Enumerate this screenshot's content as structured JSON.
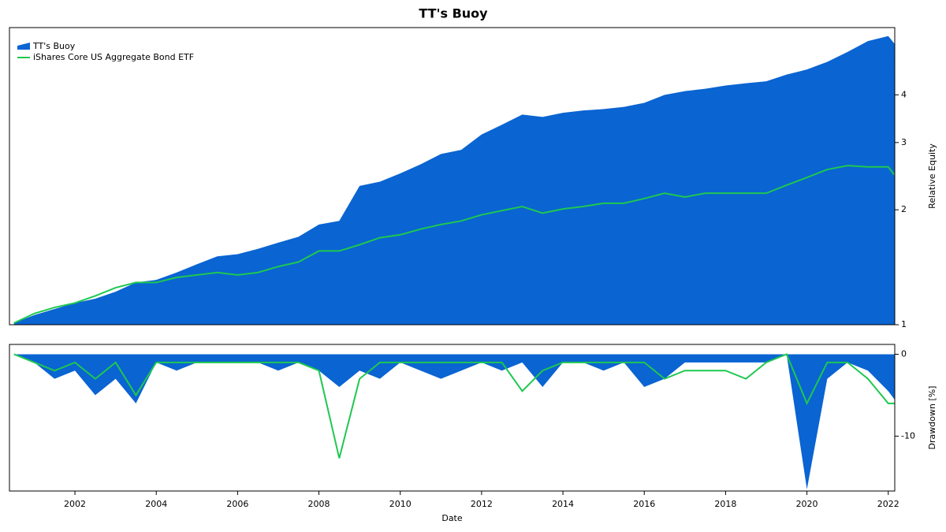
{
  "chart_data": [
    {
      "type": "area",
      "title": "TT's Buoy",
      "ylabel": "Relative Equity",
      "log": true,
      "legend": "upper left",
      "x": [
        2000.5,
        2001,
        2001.5,
        2002,
        2002.5,
        2003,
        2003.5,
        2004,
        2004.5,
        2005,
        2005.5,
        2006,
        2006.5,
        2007,
        2007.5,
        2008,
        2008.5,
        2009,
        2009.5,
        2010,
        2010.5,
        2011,
        2011.5,
        2012,
        2012.5,
        2013,
        2013.5,
        2014,
        2014.5,
        2015,
        2015.5,
        2016,
        2016.5,
        2017,
        2017.5,
        2018,
        2018.5,
        2019,
        2019.5,
        2020,
        2020.5,
        2021,
        2021.5,
        2022,
        2022.15
      ],
      "xlim": [
        2000.39,
        2022.16
      ],
      "ylim": [
        1,
        6
      ],
      "yticks": [
        1,
        2,
        3,
        4
      ],
      "series": [
        {
          "name": "TT's Buoy",
          "type": "area",
          "color": "#0a64d2",
          "values": [
            1.01,
            1.06,
            1.1,
            1.14,
            1.17,
            1.22,
            1.29,
            1.31,
            1.37,
            1.44,
            1.51,
            1.53,
            1.58,
            1.64,
            1.7,
            1.83,
            1.87,
            2.31,
            2.37,
            2.49,
            2.63,
            2.8,
            2.87,
            3.15,
            3.34,
            3.55,
            3.5,
            3.59,
            3.64,
            3.67,
            3.72,
            3.81,
            4.0,
            4.09,
            4.15,
            4.23,
            4.29,
            4.34,
            4.52,
            4.66,
            4.88,
            5.18,
            5.53,
            5.7,
            5.45
          ]
        },
        {
          "name": "iShares Core US Aggregate Bond ETF",
          "type": "line",
          "color": "#1ec850",
          "values": [
            1.01,
            1.07,
            1.11,
            1.14,
            1.19,
            1.25,
            1.29,
            1.29,
            1.33,
            1.35,
            1.37,
            1.35,
            1.37,
            1.42,
            1.46,
            1.56,
            1.56,
            1.62,
            1.69,
            1.72,
            1.78,
            1.83,
            1.87,
            1.94,
            1.99,
            2.04,
            1.96,
            2.01,
            2.04,
            2.08,
            2.08,
            2.14,
            2.21,
            2.16,
            2.21,
            2.21,
            2.21,
            2.21,
            2.32,
            2.43,
            2.55,
            2.61,
            2.59,
            2.59,
            2.47
          ]
        }
      ]
    },
    {
      "type": "area",
      "ylabel": "Drawdown [%]",
      "xlabel": "Date",
      "x": [
        2000.5,
        2001,
        2001.5,
        2002,
        2002.5,
        2003,
        2003.5,
        2004,
        2004.5,
        2005,
        2005.5,
        2006,
        2006.5,
        2007,
        2007.5,
        2008,
        2008.5,
        2009,
        2009.5,
        2010,
        2010.5,
        2011,
        2011.5,
        2012,
        2012.5,
        2013,
        2013.5,
        2014,
        2014.5,
        2015,
        2015.5,
        2016,
        2016.5,
        2017,
        2017.5,
        2018,
        2018.5,
        2019,
        2019.5,
        2020,
        2020.5,
        2021,
        2021.5,
        2022,
        2022.15
      ],
      "xlim": [
        2000.39,
        2022.16
      ],
      "xticks": [
        2002,
        2004,
        2006,
        2008,
        2010,
        2012,
        2014,
        2016,
        2018,
        2020,
        2022
      ],
      "ylim": [
        -16.7,
        1.2
      ],
      "yticks": [
        0,
        -10
      ],
      "series": [
        {
          "type": "area",
          "color": "#0a64d2",
          "values": [
            0,
            -1,
            -3,
            -2,
            -5,
            -3,
            -6,
            -1,
            -2,
            -1,
            -1,
            -1,
            -1,
            -2,
            -1,
            -2,
            -4,
            -2,
            -3,
            -1,
            -2,
            -3,
            -2,
            -1,
            -2,
            -1,
            -4,
            -1,
            -1,
            -2,
            -1,
            -4,
            -3,
            -1,
            -1,
            -1,
            -1,
            -1,
            0,
            -16.5,
            -3,
            -1,
            -2,
            -4.5,
            -5.5
          ]
        },
        {
          "type": "line",
          "color": "#1ec850",
          "values": [
            0,
            -1,
            -2,
            -1,
            -3,
            -1,
            -5,
            -1,
            -1,
            -1,
            -1,
            -1,
            -1,
            -1,
            -1,
            -2,
            -12.7,
            -3,
            -1,
            -1,
            -1,
            -1,
            -1,
            -1,
            -1,
            -4.5,
            -2,
            -1,
            -1,
            -1,
            -1,
            -1,
            -3,
            -2,
            -2,
            -2,
            -3,
            -1,
            0,
            -6,
            -1,
            -1,
            -3,
            -6,
            -6
          ]
        }
      ]
    }
  ]
}
